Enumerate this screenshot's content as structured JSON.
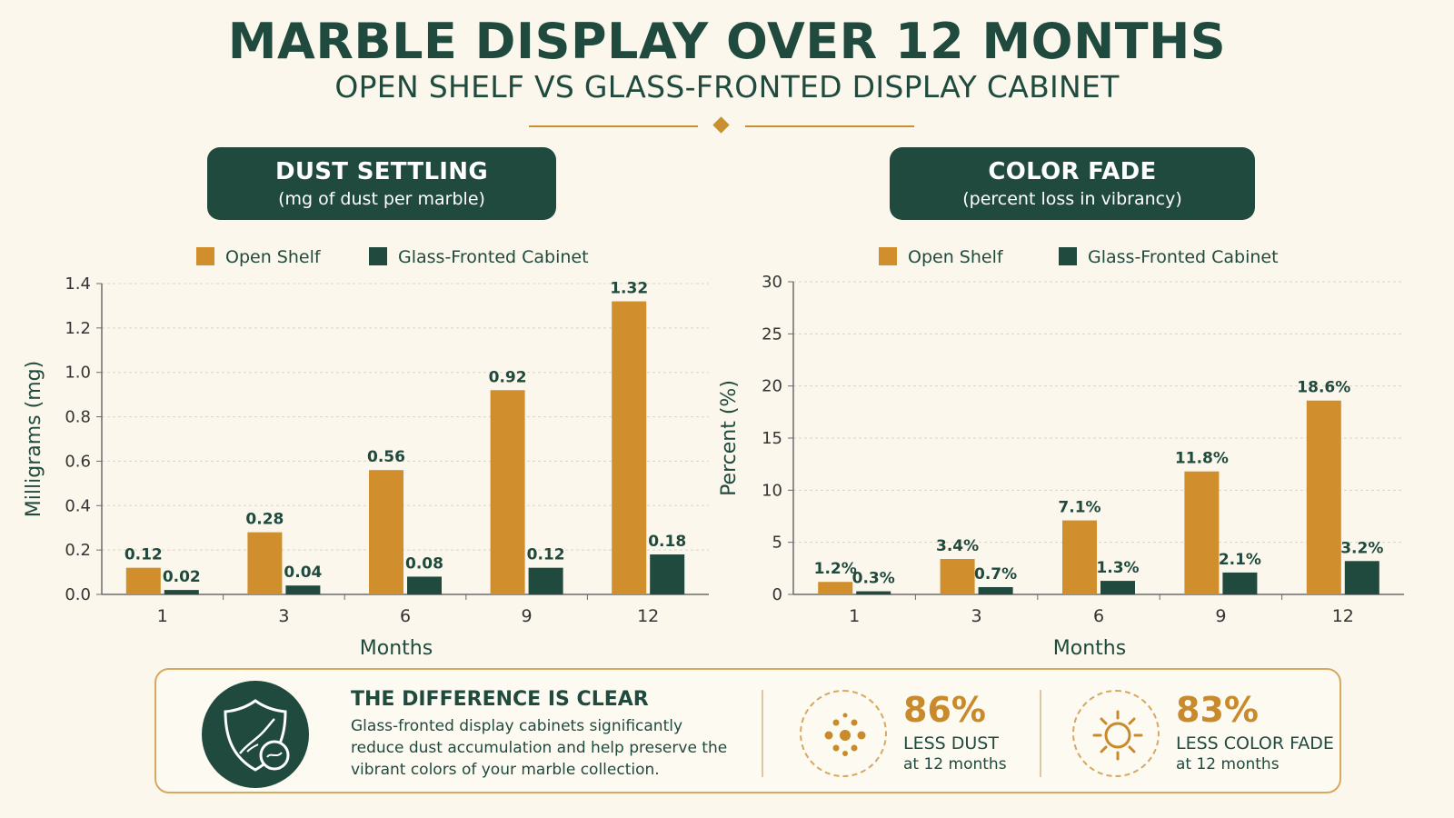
{
  "page": {
    "title": "MARBLE DISPLAY OVER 12 MONTHS",
    "subtitle": "OPEN SHELF VS GLASS-FRONTED DISPLAY CABINET",
    "colors": {
      "accent": "#c9902e",
      "dark_green": "#1f4a3d",
      "background": "#fbf7ec"
    }
  },
  "panels": [
    {
      "title": "DUST SETTLING",
      "subtitle": "(mg of dust per marble)"
    },
    {
      "title": "COLOR FADE",
      "subtitle": "(percent loss in vibrancy)"
    }
  ],
  "chart_data": [
    {
      "type": "bar",
      "title": "DUST SETTLING",
      "subtitle": "(mg of dust per marble)",
      "categories": [
        "1",
        "3",
        "6",
        "9",
        "12"
      ],
      "series": [
        {
          "name": "Open Shelf",
          "color": "#d08f2c",
          "values": [
            0.12,
            0.28,
            0.56,
            0.92,
            1.32
          ],
          "labels": [
            "0.12",
            "0.28",
            "0.56",
            "0.92",
            "1.32"
          ]
        },
        {
          "name": "Glass-Fronted Cabinet",
          "color": "#1f4a3d",
          "values": [
            0.02,
            0.04,
            0.08,
            0.12,
            0.18
          ],
          "labels": [
            "0.02",
            "0.04",
            "0.08",
            "0.12",
            "0.18"
          ]
        }
      ],
      "xlabel": "Months",
      "ylabel": "Milligrams (mg)",
      "ylim": [
        0,
        1.4
      ],
      "yticks": [
        0,
        0.2,
        0.4,
        0.6,
        0.8,
        1.0,
        1.2,
        1.4
      ],
      "ytick_labels": [
        "0.0",
        "0.2",
        "0.4",
        "0.6",
        "0.8",
        "1.0",
        "1.2",
        "1.4"
      ],
      "grid": true,
      "legend": "top"
    },
    {
      "type": "bar",
      "title": "COLOR FADE",
      "subtitle": "(percent loss in vibrancy)",
      "categories": [
        "1",
        "3",
        "6",
        "9",
        "12"
      ],
      "series": [
        {
          "name": "Open Shelf",
          "color": "#d08f2c",
          "values": [
            1.2,
            3.4,
            7.1,
            11.8,
            18.6
          ],
          "labels": [
            "1.2%",
            "3.4%",
            "7.1%",
            "11.8%",
            "18.6%"
          ]
        },
        {
          "name": "Glass-Fronted Cabinet",
          "color": "#1f4a3d",
          "values": [
            0.3,
            0.7,
            1.3,
            2.1,
            3.2
          ],
          "labels": [
            "0.3%",
            "0.7%",
            "1.3%",
            "2.1%",
            "3.2%"
          ]
        }
      ],
      "xlabel": "Months",
      "ylabel": "Percent (%)",
      "ylim": [
        0,
        30
      ],
      "yticks": [
        0,
        5,
        10,
        15,
        20,
        25,
        30
      ],
      "ytick_labels": [
        "0",
        "5",
        "10",
        "15",
        "20",
        "25",
        "30"
      ],
      "grid": true,
      "legend": "top"
    }
  ],
  "summary": {
    "icon": "shield-marble-icon",
    "title": "THE DIFFERENCE IS CLEAR",
    "text": "Glass-fronted display cabinets significantly reduce dust accumulation and help preserve the vibrant colors of your marble collection.",
    "stats": [
      {
        "icon": "dust-dots-icon",
        "value": "86%",
        "label": "LESS DUST",
        "sub": "at 12 months"
      },
      {
        "icon": "sun-icon",
        "value": "83%",
        "label": "LESS COLOR FADE",
        "sub": "at 12 months"
      }
    ]
  }
}
